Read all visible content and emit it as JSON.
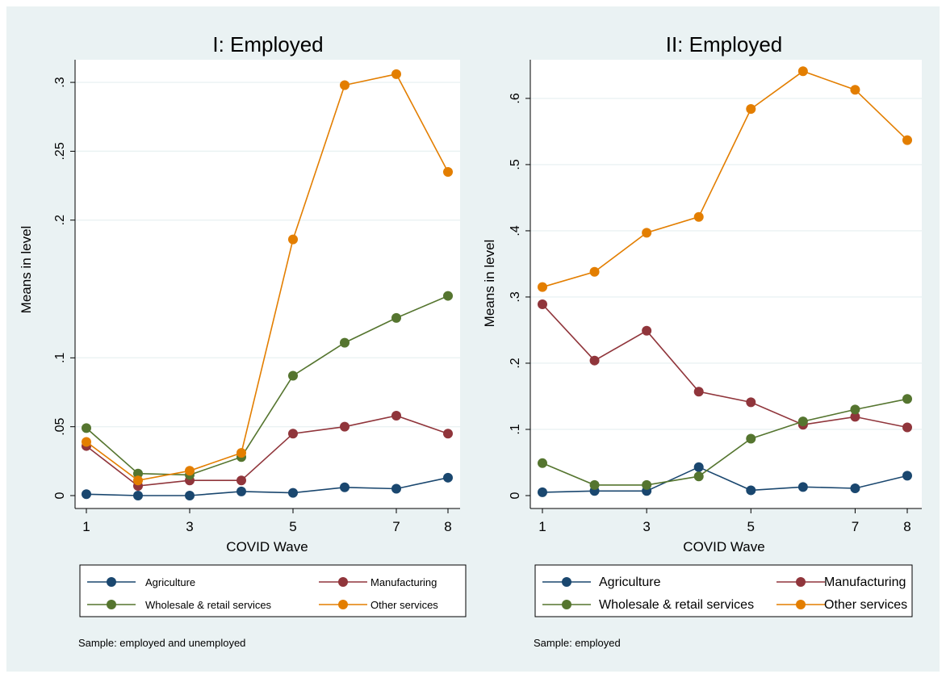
{
  "chart_data": [
    {
      "type": "line",
      "title": "I: Employed",
      "xlabel": "COVID Wave",
      "ylabel": "Means in level",
      "x": [
        1,
        2,
        3,
        4,
        5,
        6,
        7,
        8
      ],
      "xticks": [
        1,
        3,
        5,
        7,
        8
      ],
      "xtick_labels": [
        "1",
        "3",
        "5",
        "7",
        "8"
      ],
      "xlim": [
        1,
        8
      ],
      "yticks": [
        0,
        0.05,
        0.1,
        0.2,
        0.25,
        0.3
      ],
      "ytick_labels": [
        "0",
        ".05",
        ".1",
        ".2",
        ".25",
        ".3"
      ],
      "ylim": [
        0,
        0.31
      ],
      "grid": true,
      "legend_placement": "bottom",
      "note": "Sample: employed and unemployed",
      "series": [
        {
          "name": "Agriculture",
          "color": "#1a476f",
          "values": [
            0.001,
            0.0,
            0.0,
            0.003,
            0.002,
            0.006,
            0.005,
            0.013
          ]
        },
        {
          "name": "Manufacturing",
          "color": "#90353b",
          "values": [
            0.036,
            0.007,
            0.011,
            0.011,
            0.045,
            0.05,
            0.058,
            0.045
          ]
        },
        {
          "name": "Wholesale & retail services",
          "color": "#55752f",
          "values": [
            0.049,
            0.016,
            0.015,
            0.028,
            0.087,
            0.111,
            0.129,
            0.145
          ]
        },
        {
          "name": "Other services",
          "color": "#e37e00",
          "values": [
            0.039,
            0.011,
            0.018,
            0.031,
            0.186,
            0.298,
            0.306,
            0.235
          ]
        }
      ]
    },
    {
      "type": "line",
      "title": "II: Employed",
      "xlabel": "COVID Wave",
      "ylabel": "Means in level",
      "x": [
        1,
        2,
        3,
        4,
        5,
        6,
        7,
        8
      ],
      "xticks": [
        1,
        3,
        5,
        7,
        8
      ],
      "xtick_labels": [
        "1",
        "3",
        "5",
        "7",
        "8"
      ],
      "xlim": [
        1,
        8
      ],
      "yticks": [
        0,
        0.1,
        0.2,
        0.3,
        0.4,
        0.5,
        0.6
      ],
      "ytick_labels": [
        "0",
        ".1",
        ".2",
        ".3",
        ".4",
        ".5",
        ".6"
      ],
      "ylim": [
        0,
        0.645
      ],
      "grid": true,
      "legend_placement": "bottom",
      "note": "Sample: employed",
      "series": [
        {
          "name": "Agriculture",
          "color": "#1a476f",
          "values": [
            0.005,
            0.007,
            0.007,
            0.043,
            0.008,
            0.013,
            0.011,
            0.03
          ]
        },
        {
          "name": "Manufacturing",
          "color": "#90353b",
          "values": [
            0.289,
            0.204,
            0.249,
            0.157,
            0.141,
            0.107,
            0.119,
            0.103
          ]
        },
        {
          "name": "Wholesale & retail services",
          "color": "#55752f",
          "values": [
            0.049,
            0.016,
            0.016,
            0.029,
            0.086,
            0.112,
            0.13,
            0.146
          ]
        },
        {
          "name": "Other services",
          "color": "#e37e00",
          "values": [
            0.315,
            0.338,
            0.397,
            0.421,
            0.584,
            0.641,
            0.613,
            0.537
          ]
        }
      ]
    }
  ]
}
